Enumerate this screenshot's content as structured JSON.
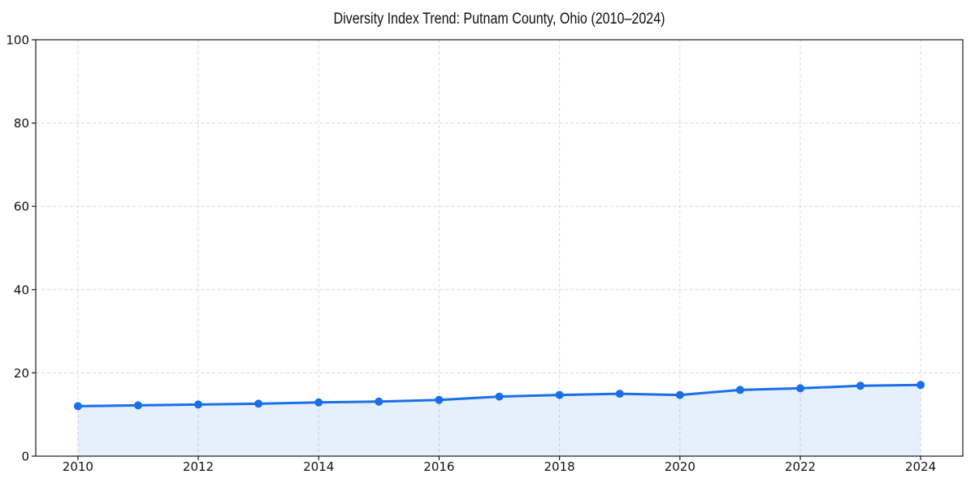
{
  "chart_data": {
    "type": "line",
    "area_fill": true,
    "title": "Diversity Index Trend: Putnam County, Ohio (2010–2024)",
    "x": [
      2010,
      2011,
      2012,
      2013,
      2014,
      2015,
      2016,
      2017,
      2018,
      2019,
      2020,
      2021,
      2022,
      2023,
      2024
    ],
    "values": [
      12.0,
      12.2,
      12.4,
      12.6,
      12.9,
      13.1,
      13.5,
      14.3,
      14.7,
      15.0,
      14.7,
      15.9,
      16.3,
      16.9,
      17.1
    ],
    "xlim": [
      2009.3,
      2024.7
    ],
    "ylim": [
      0,
      100
    ],
    "xticks": [
      2010,
      2012,
      2014,
      2016,
      2018,
      2020,
      2022,
      2024
    ],
    "xtick_labels": [
      "2010",
      "2012",
      "2014",
      "2016",
      "2018",
      "2020",
      "2022",
      "2024"
    ],
    "yticks": [
      0,
      20,
      40,
      60,
      80,
      100
    ],
    "ytick_labels": [
      "0",
      "20",
      "40",
      "60",
      "80",
      "100"
    ],
    "grid": true,
    "grid_style": "dashed",
    "legend": false,
    "marker": "circle",
    "colors": {
      "line": "#1a6fe8",
      "fill": "rgba(26, 111, 232, 0.11)",
      "grid": "#d9d9d9",
      "spine": "#1a1a1a",
      "text": "#111111",
      "background": "#ffffff"
    }
  }
}
